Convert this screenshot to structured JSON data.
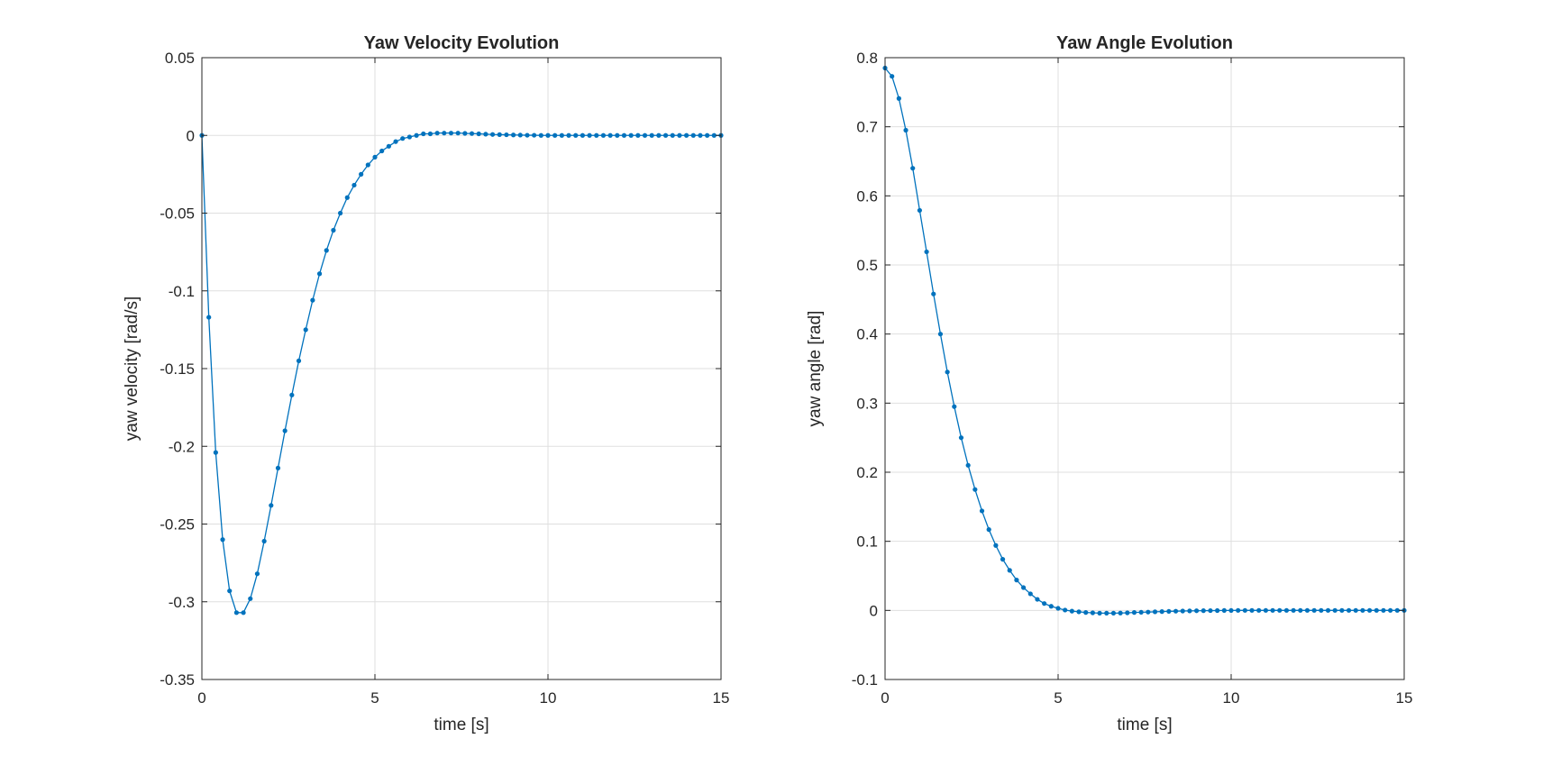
{
  "colors": {
    "series": "#0072bd",
    "axis": "#262626",
    "grid": "#dfdfdf"
  },
  "chart_data": [
    {
      "type": "line",
      "title": "Yaw Velocity Evolution",
      "xlabel": "time [s]",
      "ylabel": "yaw velocity [rad/s]",
      "xlim": [
        0,
        15
      ],
      "ylim": [
        -0.35,
        0.05
      ],
      "xticks": [
        0,
        5,
        10,
        15
      ],
      "xtick_labels": [
        "0",
        "5",
        "10",
        "15"
      ],
      "yticks": [
        -0.35,
        -0.3,
        -0.25,
        -0.2,
        -0.15,
        -0.1,
        -0.05,
        0,
        0.05
      ],
      "ytick_labels": [
        "-0.35",
        "-0.3",
        "-0.25",
        "-0.2",
        "-0.15",
        "-0.1",
        "-0.05",
        "0",
        "0.05"
      ],
      "grid": true,
      "marker": "dot",
      "series": [
        {
          "x": [
            0,
            0.2,
            0.4,
            0.6,
            0.8,
            1.0,
            1.2,
            1.4,
            1.6,
            1.8,
            2.0,
            2.2,
            2.4,
            2.6,
            2.8,
            3.0,
            3.2,
            3.4,
            3.6,
            3.8,
            4.0,
            4.2,
            4.4,
            4.6,
            4.8,
            5.0,
            5.2,
            5.4,
            5.6,
            5.8,
            6.0,
            6.2,
            6.4,
            6.6,
            6.8,
            7.0,
            7.2,
            7.4,
            7.6,
            7.8,
            8.0,
            8.2,
            8.4,
            8.6,
            8.8,
            9.0,
            9.2,
            9.4,
            9.6,
            9.8,
            10.0,
            10.2,
            10.4,
            10.6,
            10.8,
            11.0,
            11.2,
            11.4,
            11.6,
            11.8,
            12.0,
            12.2,
            12.4,
            12.6,
            12.8,
            13.0,
            13.2,
            13.4,
            13.6,
            13.8,
            14.0,
            14.2,
            14.4,
            14.6,
            14.8,
            15.0
          ],
          "y": [
            0,
            -0.117,
            -0.204,
            -0.26,
            -0.293,
            -0.307,
            -0.307,
            -0.298,
            -0.282,
            -0.261,
            -0.238,
            -0.214,
            -0.19,
            -0.167,
            -0.145,
            -0.125,
            -0.106,
            -0.089,
            -0.074,
            -0.061,
            -0.05,
            -0.04,
            -0.032,
            -0.025,
            -0.019,
            -0.014,
            -0.01,
            -0.007,
            -0.004,
            -0.002,
            -0.001,
            0,
            0.001,
            0.001,
            0.0015,
            0.0015,
            0.0015,
            0.0015,
            0.0013,
            0.0012,
            0.001,
            0.0008,
            0.0006,
            0.0005,
            0.0004,
            0.0003,
            0.0002,
            0.0001,
            0.0001,
            0,
            0,
            0,
            0,
            0,
            0,
            0,
            0,
            0,
            0,
            0,
            0,
            0,
            0,
            0,
            0,
            0,
            0,
            0,
            0,
            0,
            0,
            0,
            0,
            0,
            0,
            0
          ]
        }
      ]
    },
    {
      "type": "line",
      "title": "Yaw Angle Evolution",
      "xlabel": "time [s]",
      "ylabel": "yaw angle [rad]",
      "xlim": [
        0,
        15
      ],
      "ylim": [
        -0.1,
        0.8
      ],
      "xticks": [
        0,
        5,
        10,
        15
      ],
      "xtick_labels": [
        "0",
        "5",
        "10",
        "15"
      ],
      "yticks": [
        -0.1,
        0,
        0.1,
        0.2,
        0.3,
        0.4,
        0.5,
        0.6,
        0.7,
        0.8
      ],
      "ytick_labels": [
        "-0.1",
        "0",
        "0.1",
        "0.2",
        "0.3",
        "0.4",
        "0.5",
        "0.6",
        "0.7",
        "0.8"
      ],
      "grid": true,
      "marker": "dot",
      "series": [
        {
          "x": [
            0,
            0.2,
            0.4,
            0.6,
            0.8,
            1.0,
            1.2,
            1.4,
            1.6,
            1.8,
            2.0,
            2.2,
            2.4,
            2.6,
            2.8,
            3.0,
            3.2,
            3.4,
            3.6,
            3.8,
            4.0,
            4.2,
            4.4,
            4.6,
            4.8,
            5.0,
            5.2,
            5.4,
            5.6,
            5.8,
            6.0,
            6.2,
            6.4,
            6.6,
            6.8,
            7.0,
            7.2,
            7.4,
            7.6,
            7.8,
            8.0,
            8.2,
            8.4,
            8.6,
            8.8,
            9.0,
            9.2,
            9.4,
            9.6,
            9.8,
            10.0,
            10.2,
            10.4,
            10.6,
            10.8,
            11.0,
            11.2,
            11.4,
            11.6,
            11.8,
            12.0,
            12.2,
            12.4,
            12.6,
            12.8,
            13.0,
            13.2,
            13.4,
            13.6,
            13.8,
            14.0,
            14.2,
            14.4,
            14.6,
            14.8,
            15.0
          ],
          "y": [
            0.785,
            0.773,
            0.741,
            0.695,
            0.64,
            0.579,
            0.519,
            0.458,
            0.4,
            0.345,
            0.295,
            0.25,
            0.21,
            0.175,
            0.144,
            0.117,
            0.094,
            0.074,
            0.058,
            0.044,
            0.033,
            0.024,
            0.016,
            0.01,
            0.006,
            0.003,
            0.0005,
            -0.001,
            -0.002,
            -0.003,
            -0.0035,
            -0.004,
            -0.004,
            -0.004,
            -0.0038,
            -0.0035,
            -0.003,
            -0.0027,
            -0.0024,
            -0.002,
            -0.0017,
            -0.0014,
            -0.0011,
            -0.0009,
            -0.0007,
            -0.0005,
            -0.0004,
            -0.0003,
            -0.0002,
            -0.0001,
            -0.0001,
            0,
            0,
            0,
            0,
            0,
            0,
            0,
            0,
            0,
            0,
            0,
            0,
            0,
            0,
            0,
            0,
            0,
            0,
            0,
            0,
            0,
            0,
            0,
            0,
            0
          ]
        }
      ]
    }
  ]
}
